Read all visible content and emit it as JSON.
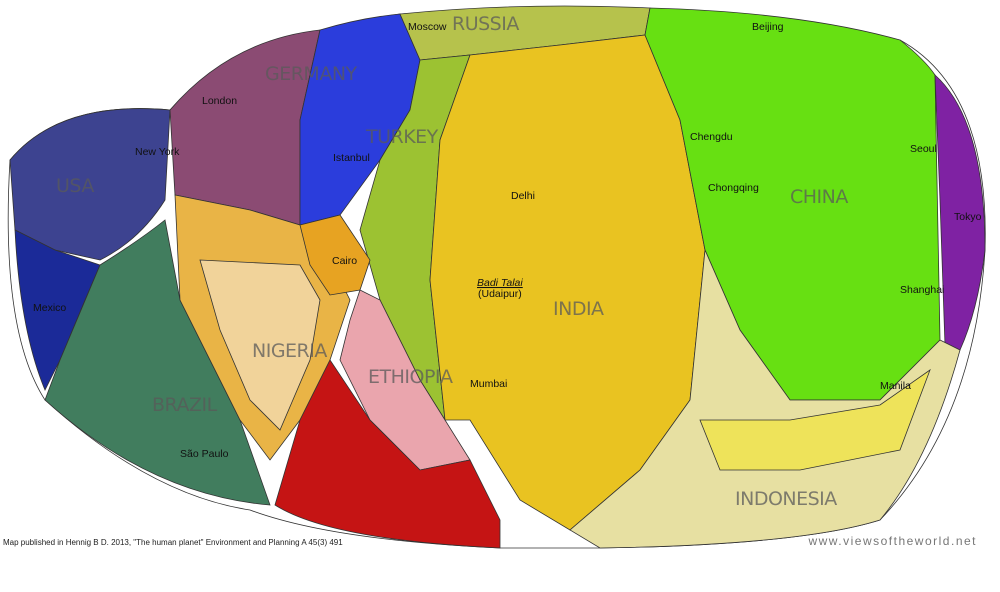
{
  "map": {
    "countries": [
      "RUSSIA",
      "GERMANY",
      "TURKEY",
      "USA",
      "CHINA",
      "INDIA",
      "NIGERIA",
      "ETHIOPIA",
      "BRAZIL",
      "INDONESIA"
    ],
    "cities": [
      "Moscow",
      "Beijing",
      "London",
      "Istanbul",
      "New York",
      "Chengdu",
      "Chongqing",
      "Seoul",
      "Tokyo",
      "Delhi",
      "Cairo",
      "Badi Talai",
      "(Udaipur)",
      "Shanghai",
      "Mexico",
      "Mumbai",
      "Manila",
      "São Paulo"
    ]
  },
  "credit": "Map published in Hennig B D. 2013, \"The human planet\" Environment and Planning A 45(3) 491",
  "website": "www.viewsoftheworld.net"
}
